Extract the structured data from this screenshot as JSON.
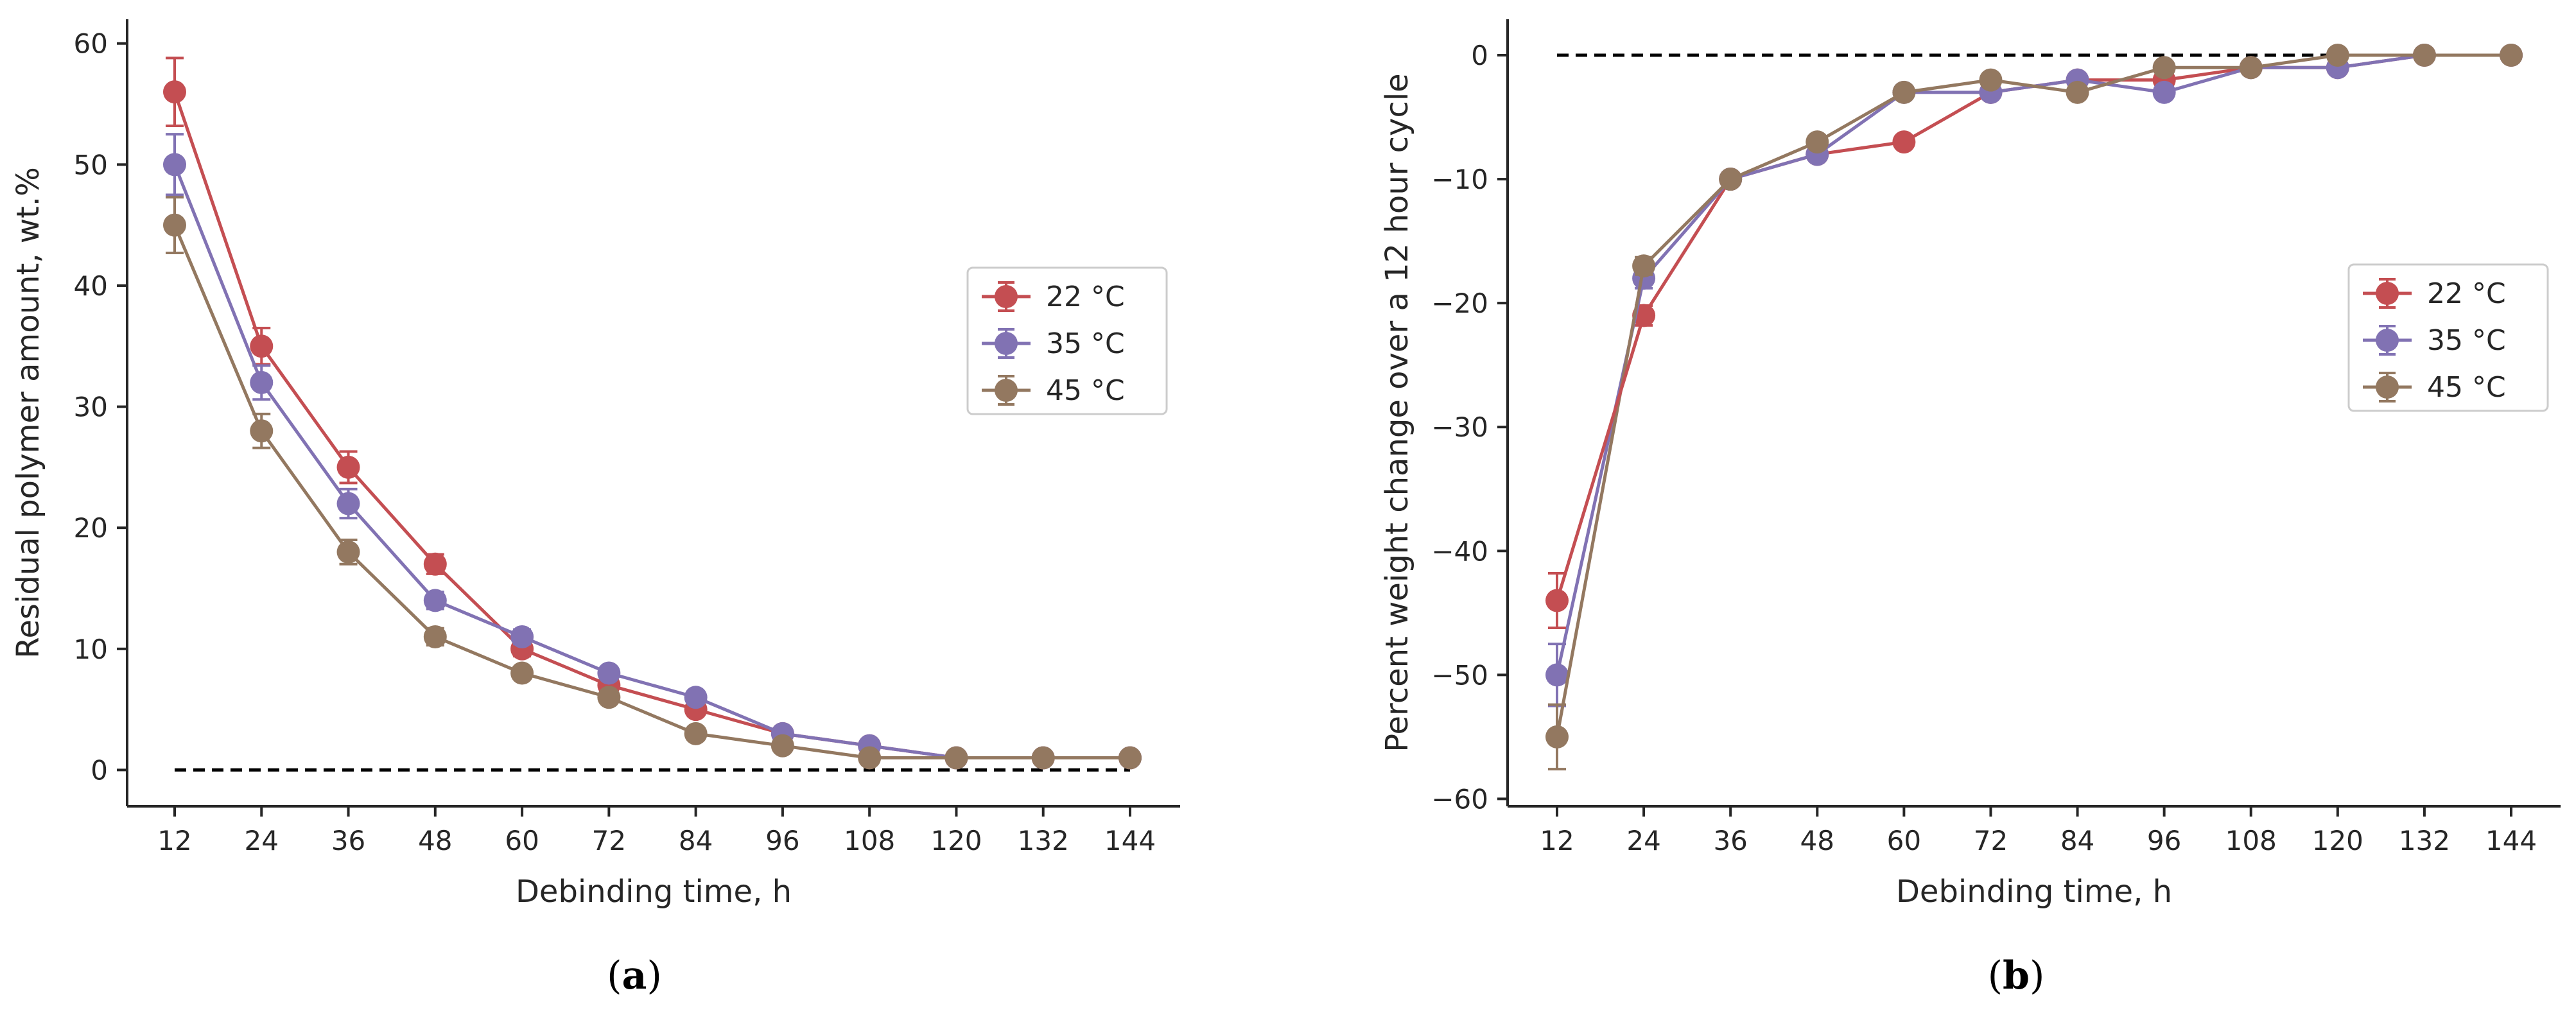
{
  "chart_data": [
    {
      "type": "line",
      "panel": "a",
      "caption_open": "(",
      "caption_letter": "a",
      "caption_close": ")",
      "xlabel": "Debinding time, h",
      "ylabel": "Residual polymer amount, wt.%",
      "x": [
        12,
        24,
        36,
        48,
        60,
        72,
        84,
        96,
        108,
        120,
        132,
        144
      ],
      "xticks": [
        "12",
        "24",
        "36",
        "48",
        "60",
        "72",
        "84",
        "96",
        "108",
        "120",
        "132",
        "144"
      ],
      "yticks": [
        "0",
        "10",
        "20",
        "30",
        "40",
        "50",
        "60"
      ],
      "ytick_values": [
        0,
        10,
        20,
        30,
        40,
        50,
        60
      ],
      "ylim": [
        -3,
        62
      ],
      "reference_line": 0,
      "legend_location": "center-right",
      "series": [
        {
          "name": "22 °C",
          "color": "#c44e52",
          "values": [
            56,
            35,
            25,
            17,
            10,
            7,
            5,
            3,
            2,
            1,
            1,
            1
          ],
          "errors": [
            2.8,
            1.5,
            1.3,
            0.8,
            0.6,
            0.5,
            0.5,
            0.4,
            0.3,
            0.2,
            0.2,
            0.2
          ]
        },
        {
          "name": "35 °C",
          "color": "#8172b3",
          "values": [
            50,
            32,
            22,
            14,
            11,
            8,
            6,
            3,
            2,
            1,
            1,
            1
          ],
          "errors": [
            2.5,
            1.4,
            1.2,
            0.7,
            0.6,
            0.5,
            0.4,
            0.4,
            0.3,
            0.2,
            0.2,
            0.2
          ]
        },
        {
          "name": "45 °C",
          "color": "#937860",
          "values": [
            45,
            28,
            18,
            11,
            8,
            6,
            3,
            2,
            1,
            1,
            1,
            1
          ],
          "errors": [
            2.3,
            1.4,
            1.0,
            0.7,
            0.5,
            0.4,
            0.4,
            0.3,
            0.2,
            0.2,
            0.2,
            0.2
          ]
        }
      ]
    },
    {
      "type": "line",
      "panel": "b",
      "caption_open": "(",
      "caption_letter": "b",
      "caption_close": ")",
      "xlabel": "Debinding time, h",
      "ylabel": "Percent weight change over a 12 hour cycle",
      "x": [
        12,
        24,
        36,
        48,
        60,
        72,
        84,
        96,
        108,
        120,
        132,
        144
      ],
      "xticks": [
        "12",
        "24",
        "36",
        "48",
        "60",
        "72",
        "84",
        "96",
        "108",
        "120",
        "132",
        "144"
      ],
      "yticks": [
        "0",
        "−10",
        "−20",
        "−30",
        "−40",
        "−50",
        "−60"
      ],
      "ytick_values": [
        0,
        -10,
        -20,
        -30,
        -40,
        -50,
        -60
      ],
      "ylim": [
        -60.6,
        2.9
      ],
      "reference_line": 0,
      "legend_location": "center-right",
      "series": [
        {
          "name": "22 °C",
          "color": "#c44e52",
          "values": [
            null,
            -21,
            -10,
            -8,
            -7,
            -3,
            -2,
            -2,
            -1,
            -1,
            0,
            0
          ],
          "errors": [
            null,
            0.8,
            0.5,
            0.4,
            0.4,
            0.3,
            0.3,
            0.3,
            0.2,
            0.2,
            0.2,
            0.2
          ]
        },
        {
          "name": "35 °C",
          "color": "#8172b3",
          "values": [
            -50,
            -18,
            -10,
            -8,
            -3,
            -3,
            -2,
            -3,
            -1,
            -1,
            0,
            0
          ],
          "errors": [
            2.5,
            0.8,
            0.4,
            0.4,
            0.3,
            0.3,
            0.3,
            0.3,
            0.2,
            0.2,
            0.2,
            0.2
          ]
        },
        {
          "name": "45 °C",
          "color": "#937860",
          "values": [
            -55,
            -17,
            -10,
            -7,
            -3,
            -2,
            -3,
            -1,
            -1,
            0,
            0,
            0
          ],
          "errors": [
            2.6,
            0.7,
            0.4,
            0.4,
            0.3,
            0.3,
            0.3,
            0.3,
            0.2,
            0.2,
            0.2,
            0.2
          ]
        }
      ],
      "highlight_point": {
        "series": "22 °C",
        "x": 12,
        "value": -44,
        "error": 2.2
      }
    }
  ]
}
